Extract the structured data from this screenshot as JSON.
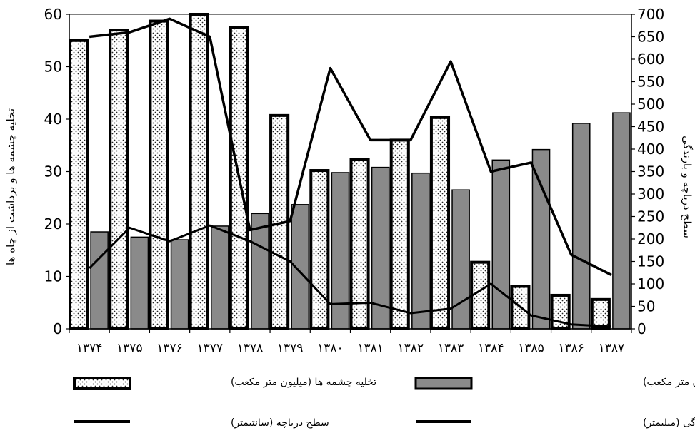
{
  "chart_data": {
    "type": "bar",
    "categories": [
      "۱۳۷۴",
      "۱۳۷۵",
      "۱۳۷۶",
      "۱۳۷۷",
      "۱۳۷۸",
      "۱۳۷۹",
      "۱۳۸۰",
      "۱۳۸۱",
      "۱۳۸۲",
      "۱۳۸۳",
      "۱۳۸۴",
      "۱۳۸۵",
      "۱۳۸۶",
      "۱۳۸۷"
    ],
    "x_tick_text": "۱۳۷۴۱۳۷۵۱۳۷۶۱۳۷۷۱۳۷۸۱۳۷۹۱۳۸۰۱۳۸۱۱۳۸۲۱۳۸۳۱۳۸۴۱۳۸۵۱۳۸۶۱۳۸۷",
    "ylabel": "تخلیه چشمه ها و برداشت از چاه ها",
    "y2label": "سطح دریاچه و بارندگی",
    "ylim": [
      0,
      60
    ],
    "y2lim": [
      0,
      700
    ],
    "y_ticks": [
      "0",
      "10",
      "20",
      "30",
      "40",
      "50",
      "60"
    ],
    "y2_ticks": [
      "0",
      "50",
      "100",
      "150",
      "200",
      "250",
      "300",
      "350",
      "400",
      "450",
      "500",
      "550",
      "600",
      "650",
      "700"
    ],
    "series": [
      {
        "name": "تخلیه چشمه ها (میلیون متر مکعب)",
        "axis": "left",
        "kind": "bar",
        "pattern": "dotted",
        "values": [
          55,
          57,
          58.7,
          60,
          57.5,
          40.7,
          30.2,
          32.3,
          36,
          40.3,
          12.7,
          8.1,
          6.4,
          5.6
        ]
      },
      {
        "name": "برداشت از چاه ها (میلیون متر مکعب)",
        "axis": "left",
        "kind": "bar",
        "pattern": "gray",
        "values": [
          18.5,
          17.5,
          17,
          19.6,
          22,
          23.7,
          29.8,
          30.8,
          29.7,
          26.5,
          32.2,
          34.2,
          39.2,
          41.2
        ]
      },
      {
        "name": "سطح دریاچه (سانتیمتر)",
        "axis": "right",
        "kind": "line",
        "values": [
          650,
          660,
          690,
          650,
          220,
          240,
          580,
          420,
          420,
          595,
          350,
          370,
          165,
          120
        ]
      },
      {
        "name": "بارندگی (میلیمتر)",
        "axis": "right",
        "kind": "line",
        "values": [
          135,
          225,
          195,
          230,
          195,
          150,
          55,
          58,
          35,
          45,
          100,
          30,
          10,
          5
        ]
      }
    ],
    "legend": {
      "placement": "bottom",
      "items": [
        {
          "label": "تخلیه چشمه ها (میلیون متر مکعب)",
          "swatch": "dotted"
        },
        {
          "label": "برداشت از چاه ها (میلیون متر مکعب)",
          "swatch": "gray"
        },
        {
          "label": "سطح دریاچه (سانتیمتر)",
          "swatch": "line"
        },
        {
          "label": "بارندگی (میلیمتر)",
          "swatch": "line"
        }
      ]
    },
    "colors": {
      "gray_bar": "#8a8a8a",
      "dotted_bg": "#ffffff",
      "stroke": "#000000"
    }
  }
}
